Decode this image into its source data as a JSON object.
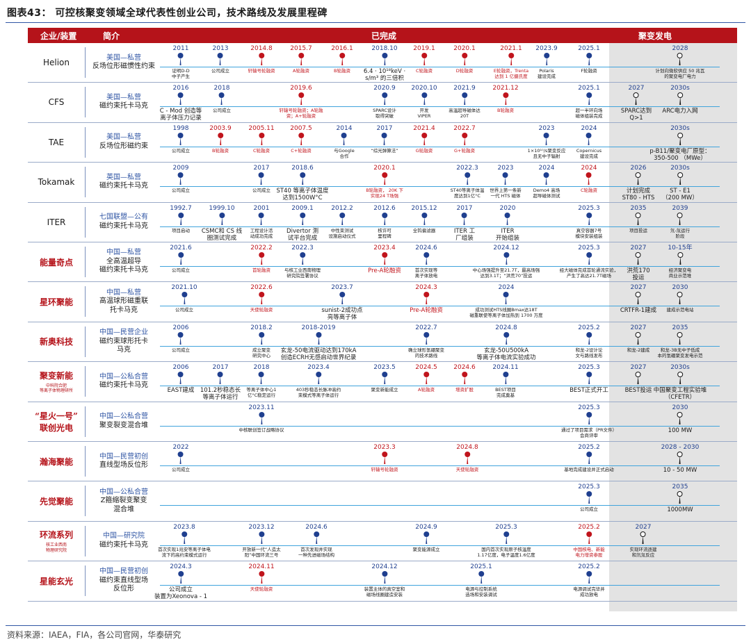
{
  "title": "图表43：  可控核聚变领域全球代表性创业公司，技术路线及发展里程碑",
  "header": {
    "col_company": "企业/装置",
    "col_intro": "简介",
    "col_done": "已完成",
    "col_power": "聚变发电"
  },
  "colors": {
    "accent": "#b5131a",
    "navy": "#1f3f8f",
    "timeline": "#3fa3dc",
    "shade": "#e3e3e3"
  },
  "source": "资料来源：IAEA，FIA，各公司官网，华泰研究",
  "rows": [
    {
      "name": "Helion",
      "name_style": "plain",
      "intro": [
        "美国—私营",
        "反场位形磁惯性约束"
      ],
      "events": [
        {
          "date": "2011",
          "label": "证明D-D\n中子产生",
          "red": false
        },
        {
          "date": "2013",
          "label": "公司成立",
          "red": false
        },
        {
          "date": "2014.8",
          "label": "轩辕号轮融资",
          "red": true
        },
        {
          "date": "2015.7",
          "label": "A轮融资",
          "red": true
        },
        {
          "date": "2016.1",
          "label": "B轮融资",
          "red": true
        },
        {
          "date": "2018.10",
          "label": "6.4 · 10¹⁸keV ·\ns/m³ 的三倍积",
          "red": false,
          "big": true
        },
        {
          "date": "2019.1",
          "label": "C轮融资",
          "red": true
        },
        {
          "date": "2020.1",
          "label": "D轮融资",
          "red": true
        },
        {
          "date": "2021.1",
          "label": "E轮融资，Trenta\n达到 1 亿摄氏度",
          "red": true
        },
        {
          "date": "2023.9",
          "label": "Polaris\n建设完成",
          "red": false
        },
        {
          "date": "2025.1",
          "label": "F轮融资",
          "red": false
        },
        {
          "date": "2028",
          "label": "计划向微软供应 50 兆瓦\n的聚变电厂电力",
          "red": false,
          "power": true
        }
      ]
    },
    {
      "name": "CFS",
      "name_style": "plain",
      "intro": [
        "美国—私营",
        "磁约束托卡马克"
      ],
      "events": [
        {
          "date": "2016",
          "label": "C - Mod 创造等\n离子体压力记录",
          "red": false,
          "big": true
        },
        {
          "date": "2018",
          "label": "公司成立",
          "red": false
        },
        {
          "date": "2019.6",
          "label": "轩辕号轮融资；A轮融\n资；A+轮融资",
          "red": true
        },
        {
          "date": "2020.9",
          "label": "SPARC设计\n取得突破",
          "red": false
        },
        {
          "date": "2020.10",
          "label": "开发\nVIPER",
          "red": false
        },
        {
          "date": "2021.9",
          "label": "高温超导磁体达\n20T",
          "red": false
        },
        {
          "date": "2021.12",
          "label": "B轮融资",
          "red": true
        },
        {
          "date": "2025.1",
          "label": "超一半环向场\n磁体组装完成",
          "red": false
        },
        {
          "date": "2027",
          "label": "SPARC达到\nQ>1",
          "red": false,
          "power": true,
          "big": true
        },
        {
          "date": "2030s",
          "label": "ARC电力入网",
          "red": false,
          "power": true,
          "big": true
        }
      ]
    },
    {
      "name": "TAE",
      "name_style": "plain",
      "intro": [
        "美国—私营",
        "反场位形磁约束"
      ],
      "events": [
        {
          "date": "1998",
          "label": "公司成立",
          "red": false
        },
        {
          "date": "2003.9",
          "label": "B轮融资",
          "red": true
        },
        {
          "date": "2005.11",
          "label": "C轮融资",
          "red": true
        },
        {
          "date": "2007.5",
          "label": "C+轮融资",
          "red": true
        },
        {
          "date": "2014",
          "label": "与Google\n合作",
          "red": false
        },
        {
          "date": "2017",
          "label": "“综光弹算法”",
          "red": false
        },
        {
          "date": "2021.4",
          "label": "G轮融资",
          "red": true
        },
        {
          "date": "2022.7",
          "label": "G+轮融资",
          "red": true
        },
        {
          "date": "2023",
          "label": "1×10¹⁰/s聚变反应\n且无中子辐射",
          "red": false
        },
        {
          "date": "2024",
          "label": "Copernicus\n建设完成",
          "red": false
        },
        {
          "date": "2030s",
          "label": "p-B11/聚变电厂原型：\n350-500 （MWe）",
          "red": false,
          "power": true,
          "big": true
        }
      ]
    },
    {
      "name": "Tokamak",
      "name_style": "plain",
      "intro": [
        "英国—私营",
        "磁约束托卡马克"
      ],
      "events": [
        {
          "date": "2009",
          "label": "公司成立",
          "red": false
        },
        {
          "date": "2017",
          "label": "公司成立",
          "red": false
        },
        {
          "date": "2018.6",
          "label": "ST40 等离子体温度\n达到1500W°C",
          "red": false,
          "big": true
        },
        {
          "date": "2020.1",
          "label": "B轮融资， 20K 下\n实现24 T场强",
          "red": true
        },
        {
          "date": "2022.3",
          "label": "ST40等离子体温\n度达到1亿°C",
          "red": false
        },
        {
          "date": "2023",
          "label": "世界上第一条新\n一代 HTS 磁体",
          "red": false
        },
        {
          "date": "2024",
          "label": "Demo4 高场\n超导磁体测试",
          "red": false
        },
        {
          "date": "2024",
          "label": "C轮融资",
          "red": true
        },
        {
          "date": "2026",
          "label": "计划完成\nST80 - HTS",
          "red": false,
          "power": true,
          "big": true
        },
        {
          "date": "2030s",
          "label": "ST - E1\n（200 MW）",
          "red": false,
          "power": true,
          "big": true
        }
      ]
    },
    {
      "name": "ITER",
      "name_style": "plain",
      "intro": [
        "七国联盟—公有",
        "磁约束托卡马克"
      ],
      "events": [
        {
          "date": "1992.7",
          "label": "项目启动",
          "red": false
        },
        {
          "date": "1999.10",
          "label": "CSMC和 CS 线\n圈测试完成",
          "red": false,
          "big": true
        },
        {
          "date": "2001",
          "label": "工程设计活\n动成功完成",
          "red": false
        },
        {
          "date": "2009.1",
          "label": "Divertor 测\n试平台完成",
          "red": false,
          "big": true
        },
        {
          "date": "2012.2",
          "label": "中性束测试\n设施启动仪式",
          "red": false
        },
        {
          "date": "2012.6",
          "label": "核许可\n里程碑",
          "red": false
        },
        {
          "date": "2015.12",
          "label": "全钨偏滤器",
          "red": false
        },
        {
          "date": "2017",
          "label": "ITER 工\n厂组装",
          "red": false,
          "big": true
        },
        {
          "date": "2020",
          "label": "ITER\n开始组装",
          "red": false,
          "big": true
        },
        {
          "date": "2025.3",
          "label": "真空容器7号\n模块安装组装",
          "red": false
        },
        {
          "date": "2035",
          "label": "项目投运",
          "red": false,
          "power": true
        },
        {
          "date": "2039",
          "label": "氘-氚运行\n阶段",
          "red": false,
          "power": true
        }
      ]
    },
    {
      "name": "能量奇点",
      "name_style": "red",
      "intro": [
        "中国—私营",
        "全高温超导",
        "磁约束托卡马克"
      ],
      "events": [
        {
          "date": "2021.6",
          "label": "公司成立",
          "red": false
        },
        {
          "date": "2022.2",
          "label": "首轮融资",
          "red": true
        },
        {
          "date": "2022.3",
          "label": "与核工业西南物理\n研究院签署协议",
          "red": false
        },
        {
          "date": "2023.4",
          "label": "Pre-A轮融资",
          "red": true,
          "big": true
        },
        {
          "date": "2024.6",
          "label": "首次实现等\n离子体放电",
          "red": false
        },
        {
          "date": "2024.12",
          "label": "中心场强提升至21.7T，最高场强\n达到3.1T；“洪荒70”投运",
          "red": false
        },
        {
          "date": "2025.3",
          "label": "经大磁体完成首轮通流实验，\n产生了高达21.7T磁场",
          "red": false
        },
        {
          "date": "2027",
          "label": "洪荒170\n投运",
          "red": false,
          "power": true,
          "big": true
        },
        {
          "date": "10-15年",
          "label": "经济聚变电\n商业示范堆",
          "red": false,
          "power": true
        }
      ]
    },
    {
      "name": "星环聚能",
      "name_style": "red",
      "intro": [
        "中国—私营",
        "高温球形磁重联",
        "托卡马克"
      ],
      "events": [
        {
          "date": "2021.10",
          "label": "公司成立",
          "red": false
        },
        {
          "date": "2022.6",
          "label": "天使轮融资",
          "red": true
        },
        {
          "date": "2023.7",
          "label": "sunist-2成功点\n亮等离子体",
          "red": false,
          "big": true
        },
        {
          "date": "2024.3",
          "label": "Pre-A轮融资",
          "red": true,
          "big": true
        },
        {
          "date": "2024",
          "label": "成功测试HTS线圈Bmax达18T\n磁重联使等离子体加热到 1700 万度",
          "red": false
        },
        {
          "date": "2027",
          "label": "CRTFR-1建成",
          "red": false,
          "power": true,
          "big": true
        },
        {
          "date": "2030",
          "label": "建成示范电站",
          "red": false,
          "power": true
        }
      ]
    },
    {
      "name": "新奥科技",
      "name_style": "red",
      "intro": [
        "中国—民营企业",
        "磁约束球形托卡",
        "马克"
      ],
      "events": [
        {
          "date": "2006",
          "label": "公司成立",
          "red": false
        },
        {
          "date": "2018.2",
          "label": "成立聚变\n研究中心",
          "red": false
        },
        {
          "date": "2018-2019",
          "label": "玄龙-50电流驱动达到170kA\n创造ECRH无感启动世界纪录",
          "red": false,
          "big": true
        },
        {
          "date": "2022.7",
          "label": "确立球形氢硼聚变\n的技术路线",
          "red": false
        },
        {
          "date": "2024.8",
          "label": "玄龙-50U500kA\n等离子体电流实验成功",
          "red": false,
          "big": true
        },
        {
          "date": "2025.2",
          "label": "和龙-2设计论\n文与路线发布",
          "red": false
        },
        {
          "date": "2027",
          "label": "和龙-2建成",
          "red": false,
          "power": true
        },
        {
          "date": "2035",
          "label": "和龙-3B无中子低成\n本的氢硼聚变发电示范",
          "red": false,
          "power": true
        }
      ]
    },
    {
      "name": "聚变新能",
      "name_style": "red",
      "name_sub": "中科院合肥\n等离子体物理研所",
      "intro": [
        "中国—公私合营",
        "磁约束托卡马克"
      ],
      "events": [
        {
          "date": "2006",
          "label": "EAST建成",
          "red": false,
          "big": true
        },
        {
          "date": "2017",
          "label": "101.2秒稳态长\n等离子体运行",
          "red": false,
          "big": true
        },
        {
          "date": "2018",
          "label": "等离子体中心1\n亿°C稳定运行",
          "red": false
        },
        {
          "date": "2023.4",
          "label": "403秒稳态长脉冲高约\n束模式等离子体运行",
          "red": false
        },
        {
          "date": "2023.5",
          "label": "聚变新能成立",
          "red": false
        },
        {
          "date": "2024.5",
          "label": "A轮融资",
          "red": true
        },
        {
          "date": "2024.6",
          "label": "增资扩股",
          "red": true
        },
        {
          "date": "2024.11",
          "label": "BEST项目\n完成奠基",
          "red": false
        },
        {
          "date": "2025.3",
          "label": "BEST正式开工",
          "red": false,
          "big": true
        },
        {
          "date": "2027",
          "label": "BEST投运",
          "red": false,
          "power": true,
          "big": true
        },
        {
          "date": "2030s",
          "label": "中国聚变工程实验堆\n（CFETR）",
          "red": false,
          "power": true,
          "big": true
        }
      ]
    },
    {
      "name": "“星火一号”\n联创光电",
      "name_style": "red",
      "intro": [
        "中国—公私合营",
        "聚变裂变混合堆"
      ],
      "events": [
        {
          "date": "2023.11",
          "label": "中核联创签订战略协议",
          "red": false
        },
        {
          "date": "2025.3",
          "label": "通过了项目需求（PR文件）\n会商评审",
          "red": false
        },
        {
          "date": "2030",
          "label": "100 MW",
          "red": false,
          "power": true,
          "big": true
        }
      ]
    },
    {
      "name": "瀚海聚能",
      "name_style": "red",
      "intro": [
        "中国—民营初创",
        "直线型场反位形"
      ],
      "events": [
        {
          "date": "2022",
          "label": "公司成立",
          "red": false
        },
        {
          "date": "2023.3",
          "label": "轩辕号轮融资",
          "red": true
        },
        {
          "date": "2024.8",
          "label": "天使轮融资",
          "red": true
        },
        {
          "date": "2025.2",
          "label": "基地完成建设并正式启动",
          "red": false
        },
        {
          "date": "2028 - 2030",
          "label": "10 - 50 MW",
          "red": false,
          "power": true,
          "big": true
        }
      ]
    },
    {
      "name": "先觉聚能",
      "name_style": "red",
      "intro": [
        "中国—公私合营",
        "Z箍缩裂变聚变",
        "混合堆"
      ],
      "events": [
        {
          "date": "2025.3",
          "label": "公司成立",
          "red": false
        },
        {
          "date": "2035",
          "label": "1000MW",
          "red": false,
          "power": true,
          "big": true
        }
      ]
    },
    {
      "name": "环流系列",
      "name_style": "red",
      "name_sub": "核工业西南\n物理研究院",
      "intro": [
        "中国—研究院",
        "磁约束托卡马克"
      ],
      "events": [
        {
          "date": "2023.8",
          "label": "首次实现1兆安等离子体电\n流下的高约束模式运行",
          "red": false
        },
        {
          "date": "2023.12",
          "label": "开放新一代“人造太\n阳”中国环流三号",
          "red": false
        },
        {
          "date": "2024.6",
          "label": "首次发现并实现\n一种先进磁场结构",
          "red": false
        },
        {
          "date": "2024.9",
          "label": "聚变能源成立",
          "red": false
        },
        {
          "date": "2025.3",
          "label": "国内首次实现原子核温度\n1.17亿度，电子温度1.6亿度",
          "red": false
        },
        {
          "date": "2025.2",
          "label": "中国核电、新能\n电力增资参股",
          "red": true
        },
        {
          "date": "2027",
          "label": "实现环流逐建\n和氘氚反应",
          "red": false,
          "power": true
        }
      ]
    },
    {
      "name": "星能玄光",
      "name_style": "red",
      "intro": [
        "中国—民营初创",
        "磁约束直线型场",
        "反位形"
      ],
      "events": [
        {
          "date": "2024.3",
          "label": "公司成立\n装置为Xeonova - 1",
          "red": false,
          "big": true
        },
        {
          "date": "2024.11",
          "label": "天使轮融资",
          "red": true
        },
        {
          "date": "2024.12",
          "label": "装置主体的真空室和\n磁场线圈建造安装",
          "red": false
        },
        {
          "date": "2025.1",
          "label": "电源与控制系统\n选场和安装调试",
          "red": false
        },
        {
          "date": "2025.2",
          "label": "电源调试完毕并\n成功放电",
          "red": false
        }
      ]
    }
  ]
}
